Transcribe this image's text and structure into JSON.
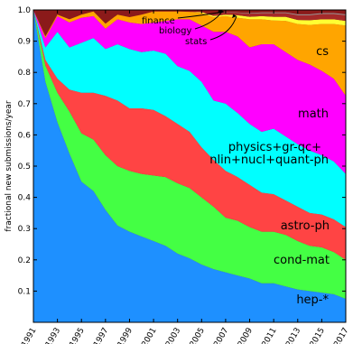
{
  "chart_data": {
    "type": "area",
    "stacked": true,
    "title": "",
    "xlabel": "",
    "ylabel": "fractional new submissions/year",
    "xlim": [
      1991,
      2017
    ],
    "ylim": [
      0,
      1
    ],
    "x_ticks": [
      "1991",
      "1993",
      "1995",
      "1997",
      "1999",
      "2001",
      "2003",
      "2005",
      "2007",
      "2009",
      "2011",
      "2013",
      "2015",
      "2017"
    ],
    "y_ticks": [
      "0.1",
      "0.2",
      "0.3",
      "0.4",
      "0.5",
      "0.6",
      "0.7",
      "0.8",
      "0.9",
      "1.0"
    ],
    "x": [
      1991,
      1992,
      1993,
      1994,
      1995,
      1996,
      1997,
      1998,
      1999,
      2000,
      2001,
      2002,
      2003,
      2004,
      2005,
      2006,
      2007,
      2008,
      2009,
      2010,
      2011,
      2012,
      2013,
      2014,
      2015,
      2016,
      2017
    ],
    "series": [
      {
        "name": "hep-*",
        "color": "#1e90ff",
        "values": [
          1.0,
          0.77,
          0.64,
          0.54,
          0.45,
          0.42,
          0.36,
          0.31,
          0.29,
          0.275,
          0.26,
          0.245,
          0.22,
          0.205,
          0.185,
          0.17,
          0.16,
          0.15,
          0.14,
          0.125,
          0.125,
          0.115,
          0.105,
          0.1,
          0.095,
          0.09,
          0.075
        ]
      },
      {
        "name": "cond-mat",
        "color": "#44ff44",
        "values": [
          0.0,
          0.052,
          0.095,
          0.135,
          0.155,
          0.165,
          0.175,
          0.19,
          0.195,
          0.2,
          0.21,
          0.22,
          0.225,
          0.225,
          0.215,
          0.2,
          0.175,
          0.175,
          0.165,
          0.165,
          0.165,
          0.165,
          0.155,
          0.145,
          0.145,
          0.135,
          0.125
        ]
      },
      {
        "name": "astro-ph",
        "color": "#ff4444",
        "values": [
          0.0,
          0.018,
          0.045,
          0.07,
          0.13,
          0.15,
          0.19,
          0.21,
          0.2,
          0.21,
          0.21,
          0.195,
          0.19,
          0.18,
          0.16,
          0.15,
          0.15,
          0.14,
          0.135,
          0.125,
          0.12,
          0.11,
          0.11,
          0.105,
          0.105,
          0.105,
          0.105
        ]
      },
      {
        "name": "physics+gr-qc+nlin+nucl+quant-ph",
        "color": "#00ffff",
        "values": [
          0.0,
          0.04,
          0.15,
          0.135,
          0.16,
          0.175,
          0.15,
          0.18,
          0.19,
          0.18,
          0.19,
          0.2,
          0.185,
          0.195,
          0.21,
          0.19,
          0.215,
          0.205,
          0.195,
          0.195,
          0.21,
          0.205,
          0.2,
          0.2,
          0.19,
          0.185,
          0.17
        ]
      },
      {
        "name": "math",
        "color": "#ff00ff",
        "values": [
          0.0,
          0.03,
          0.05,
          0.08,
          0.08,
          0.07,
          0.065,
          0.08,
          0.085,
          0.09,
          0.09,
          0.105,
          0.15,
          0.165,
          0.18,
          0.22,
          0.23,
          0.245,
          0.245,
          0.28,
          0.27,
          0.27,
          0.27,
          0.275,
          0.27,
          0.265,
          0.25
        ]
      },
      {
        "name": "cs",
        "color": "#ffa500",
        "values": [
          0.0,
          0.005,
          0.005,
          0.01,
          0.01,
          0.015,
          0.016,
          0.015,
          0.017,
          0.03,
          0.035,
          0.03,
          0.025,
          0.024,
          0.04,
          0.047,
          0.05,
          0.06,
          0.09,
          0.08,
          0.076,
          0.1,
          0.115,
          0.127,
          0.15,
          0.175,
          0.225
        ]
      },
      {
        "name": "stats",
        "color": "#ffff33",
        "values": [
          0.0,
          0.0,
          0.0,
          0.0,
          0.0,
          0.0,
          0.0,
          0.0,
          0.0,
          0.0,
          0.0,
          0.0,
          0.0,
          0.0,
          0.003,
          0.004,
          0.005,
          0.008,
          0.008,
          0.01,
          0.012,
          0.013,
          0.013,
          0.015,
          0.015,
          0.015,
          0.015
        ]
      },
      {
        "name": "biology",
        "color": "#a52a2a",
        "values": [
          0.0,
          0.0,
          0.0,
          0.0,
          0.0,
          0.0,
          0.0,
          0.0,
          0.0,
          0.0,
          0.0,
          0.0,
          0.0,
          0.0,
          0.002,
          0.005,
          0.008,
          0.008,
          0.01,
          0.01,
          0.012,
          0.012,
          0.015,
          0.016,
          0.017,
          0.017,
          0.018
        ]
      },
      {
        "name": "finance",
        "color": "#999999",
        "values": [
          0.0,
          0.0,
          0.0,
          0.0,
          0.0,
          0.0,
          0.0,
          0.0,
          0.0,
          0.0,
          0.0,
          0.0,
          0.0,
          0.0,
          0.0,
          0.0,
          0.001,
          0.001,
          0.002,
          0.002,
          0.002,
          0.002,
          0.003,
          0.003,
          0.003,
          0.003,
          0.003
        ]
      }
    ],
    "labels": [
      {
        "text": "hep-*",
        "size": "large"
      },
      {
        "text": "cond-mat",
        "size": "large"
      },
      {
        "text": "astro-ph",
        "size": "large"
      },
      {
        "text": "physics+gr-qc+",
        "size": "large"
      },
      {
        "text": "nlin+nucl+quant-ph",
        "size": "large"
      },
      {
        "text": "math",
        "size": "large"
      },
      {
        "text": "cs",
        "size": "large"
      },
      {
        "text": "stats",
        "size": "small"
      },
      {
        "text": "biology",
        "size": "small"
      },
      {
        "text": "finance",
        "size": "small"
      }
    ]
  }
}
